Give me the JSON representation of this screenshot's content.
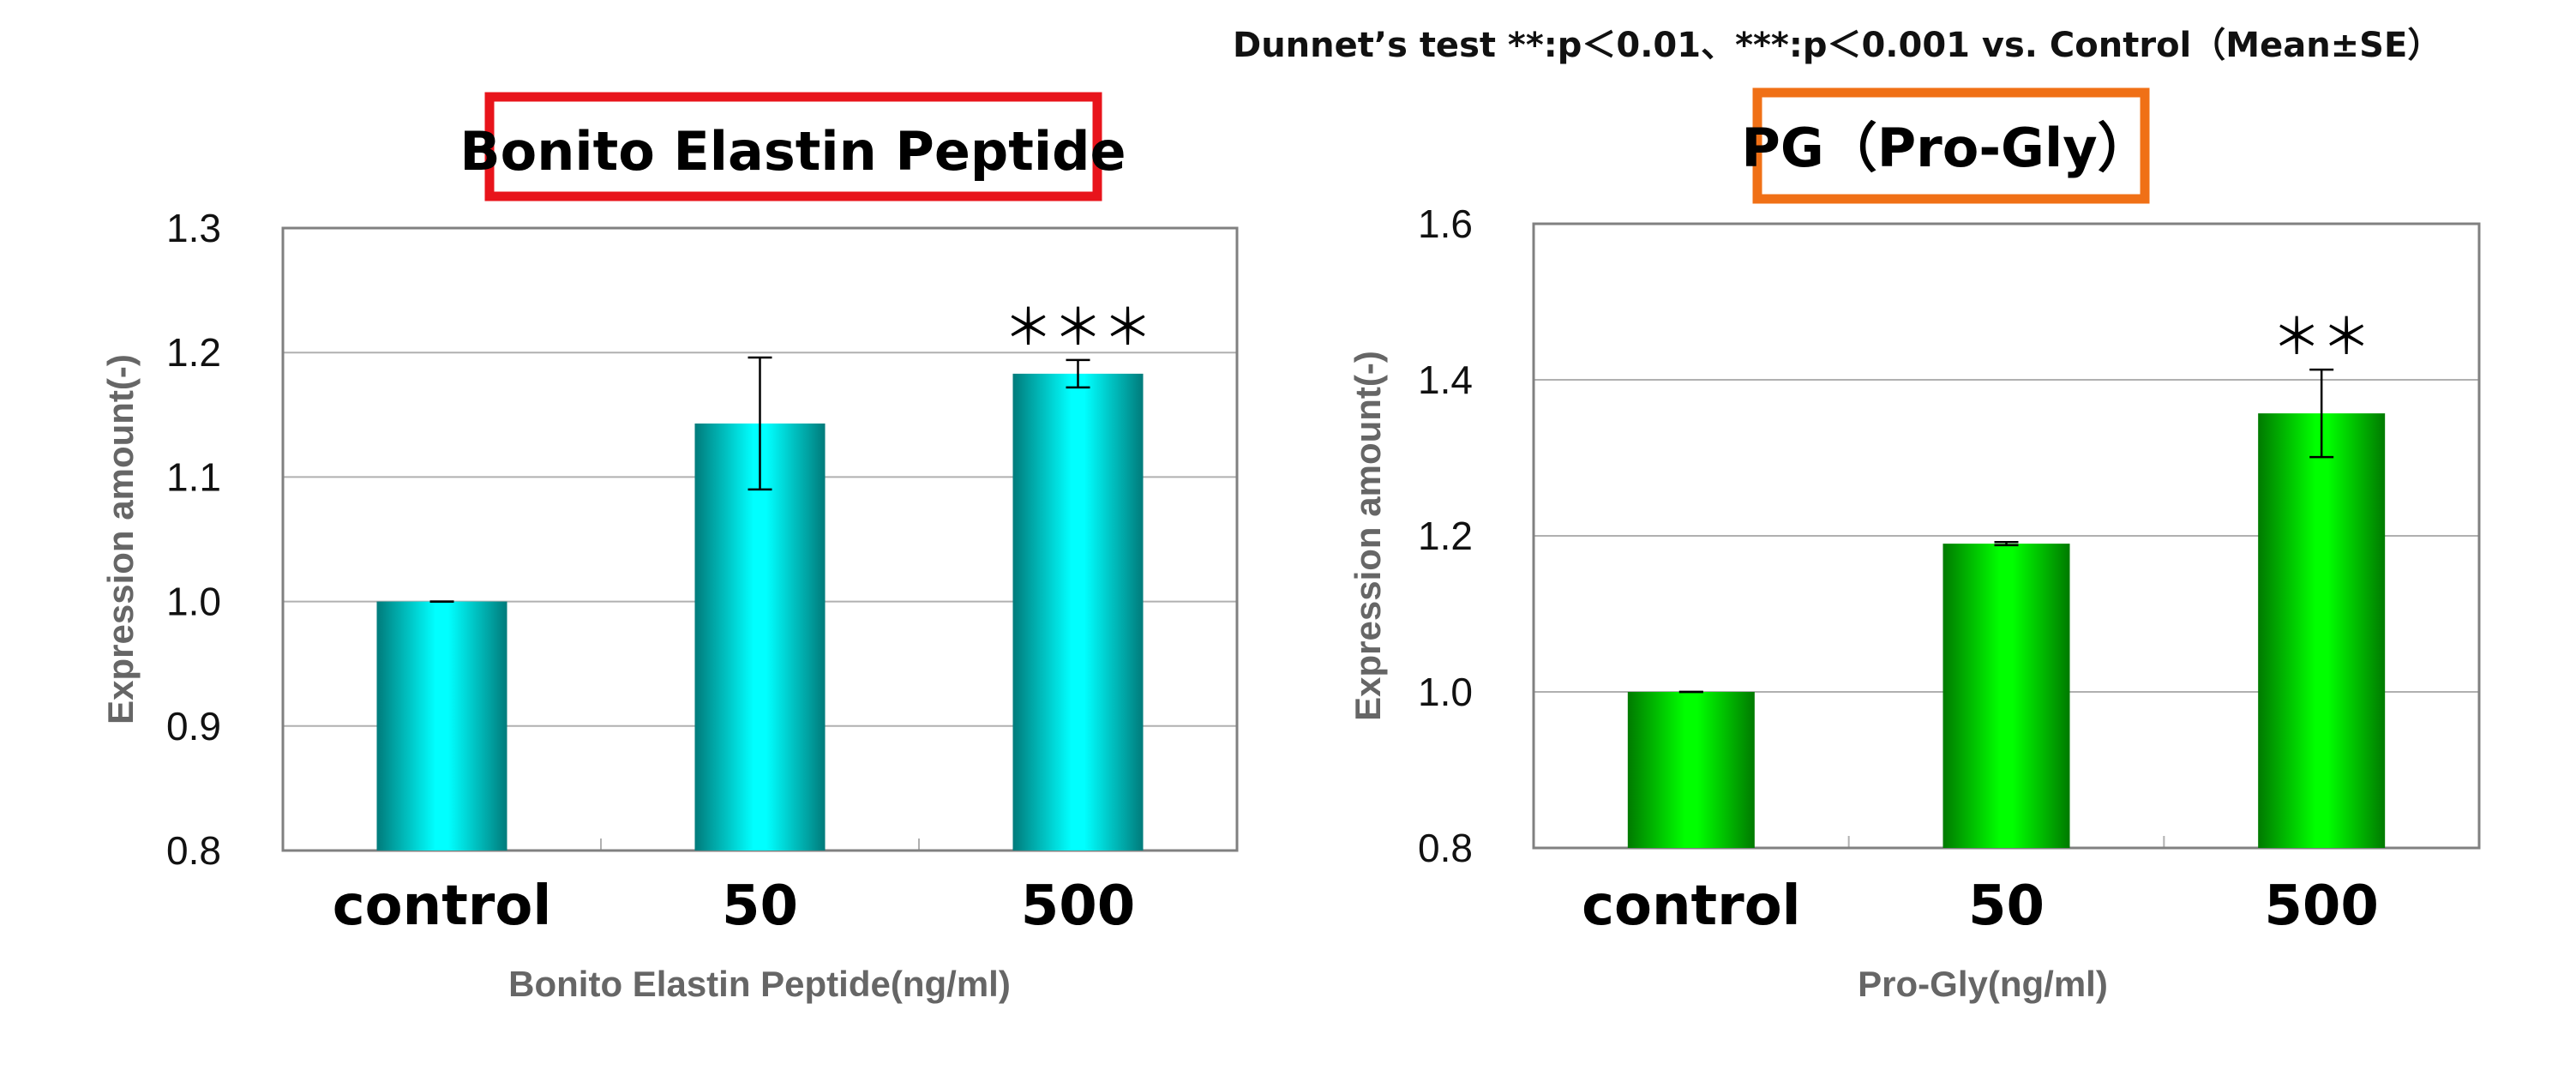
{
  "note": "Dunnet’s test  **:p＜0.01、***:p＜0.001  vs. Control（Mean±SE）",
  "colors": {
    "panel1_box": "#e8141b",
    "panel2_box": "#f07016",
    "bar_cyan_light": "#00ffff",
    "bar_cyan_dark": "#008080",
    "bar_green_light": "#00ff00",
    "bar_green_dark": "#007a00",
    "grid": "#b0b0b0",
    "plot_border": "#808080",
    "axis_label": "#666666"
  },
  "chart_data": [
    {
      "type": "bar",
      "title": "Bonito Elastin Peptide",
      "xlabel": "Bonito Elastin Peptide(ng/ml)",
      "ylabel": "Expression amount(-)",
      "categories": [
        "control",
        "50",
        "500"
      ],
      "values": [
        1.0,
        1.143,
        1.183
      ],
      "errors": [
        0.0,
        0.053,
        0.011
      ],
      "significance": [
        "",
        "",
        "＊＊＊"
      ],
      "ylim": [
        0.8,
        1.3
      ],
      "yticks": [
        "0.8",
        "0.9",
        "1.0",
        "1.1",
        "1.2",
        "1.3"
      ],
      "grid": true,
      "bar_color": "cyan"
    },
    {
      "type": "bar",
      "title": "PG（Pro-Gly）",
      "xlabel": "Pro-Gly(ng/ml)",
      "ylabel": "Expression amount(-)",
      "categories": [
        "control",
        "50",
        "500"
      ],
      "values": [
        1.0,
        1.19,
        1.357
      ],
      "errors": [
        0.0,
        0.002,
        0.056
      ],
      "significance": [
        "",
        "",
        "＊＊"
      ],
      "ylim": [
        0.8,
        1.6
      ],
      "yticks": [
        "0.8",
        "1.0",
        "1.2",
        "1.4",
        "1.6"
      ],
      "grid": true,
      "bar_color": "green"
    }
  ]
}
